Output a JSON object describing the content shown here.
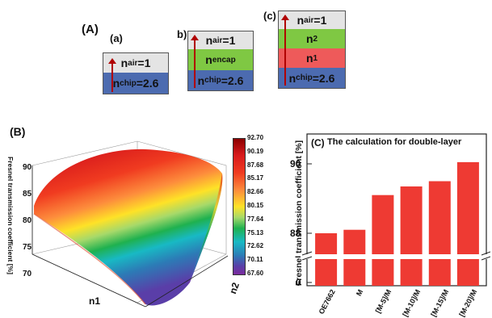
{
  "panelA": {
    "label": "(A)",
    "a": {
      "label": "(a)",
      "top": {
        "base": "n",
        "sub": "air",
        "rest": "=1"
      },
      "bottom": {
        "base": "n",
        "sub": "chip",
        "rest": "=2.6"
      }
    },
    "b": {
      "label": "b)",
      "top": {
        "base": "n",
        "sub": "air",
        "rest": "=1"
      },
      "middle": {
        "base": "n",
        "sub": "encap",
        "rest": ""
      },
      "bottom": {
        "base": "n",
        "sub": "chip",
        "rest": "=2.6"
      }
    },
    "c": {
      "label": "(c)",
      "top": {
        "base": "n",
        "sub": "air",
        "rest": "=1"
      },
      "l2": {
        "base": "n",
        "sub": "2",
        "rest": ""
      },
      "l1": {
        "base": "n",
        "sub": "1",
        "rest": ""
      },
      "bottom": {
        "base": "n",
        "sub": "chip",
        "rest": "=2.6"
      }
    }
  },
  "panelB": {
    "label": "(B)",
    "zlabel": "Fresnel transmission coefficient [%]",
    "xlabel": "n1",
    "ylabel": "n2",
    "z_ticks": [
      "70",
      "75",
      "80",
      "85",
      "90"
    ],
    "colorbar_ticks": [
      "92.70",
      "90.19",
      "87.68",
      "85.17",
      "82.66",
      "80.15",
      "77.64",
      "75.13",
      "72.62",
      "70.11",
      "67.60"
    ],
    "colorbar_colors": [
      "#8b0000",
      "#d7191c",
      "#f03b20",
      "#fc8d2c",
      "#fdd22a",
      "#a6d96a",
      "#1fb14f",
      "#18b9c4",
      "#2c7bb6",
      "#5a3ea8",
      "#7b2c9e"
    ]
  },
  "chart_data": [
    {
      "type": "bar",
      "title": "The calculation for double-layer",
      "ylabel": "Fresnel transmission coefficient [%]",
      "categories": [
        "OE7662",
        "M",
        "[M-5]/M",
        "[M-10]/M",
        "[M-15]/M",
        "[M-20]/M"
      ],
      "values": [
        88.0,
        88.1,
        89.1,
        89.35,
        89.5,
        90.05
      ],
      "y_ticks": [
        "0",
        "88",
        "90"
      ],
      "axis_break": [
        0.5,
        87.4
      ],
      "color": "#ee3a33"
    }
  ],
  "panelC_label": "(C)"
}
